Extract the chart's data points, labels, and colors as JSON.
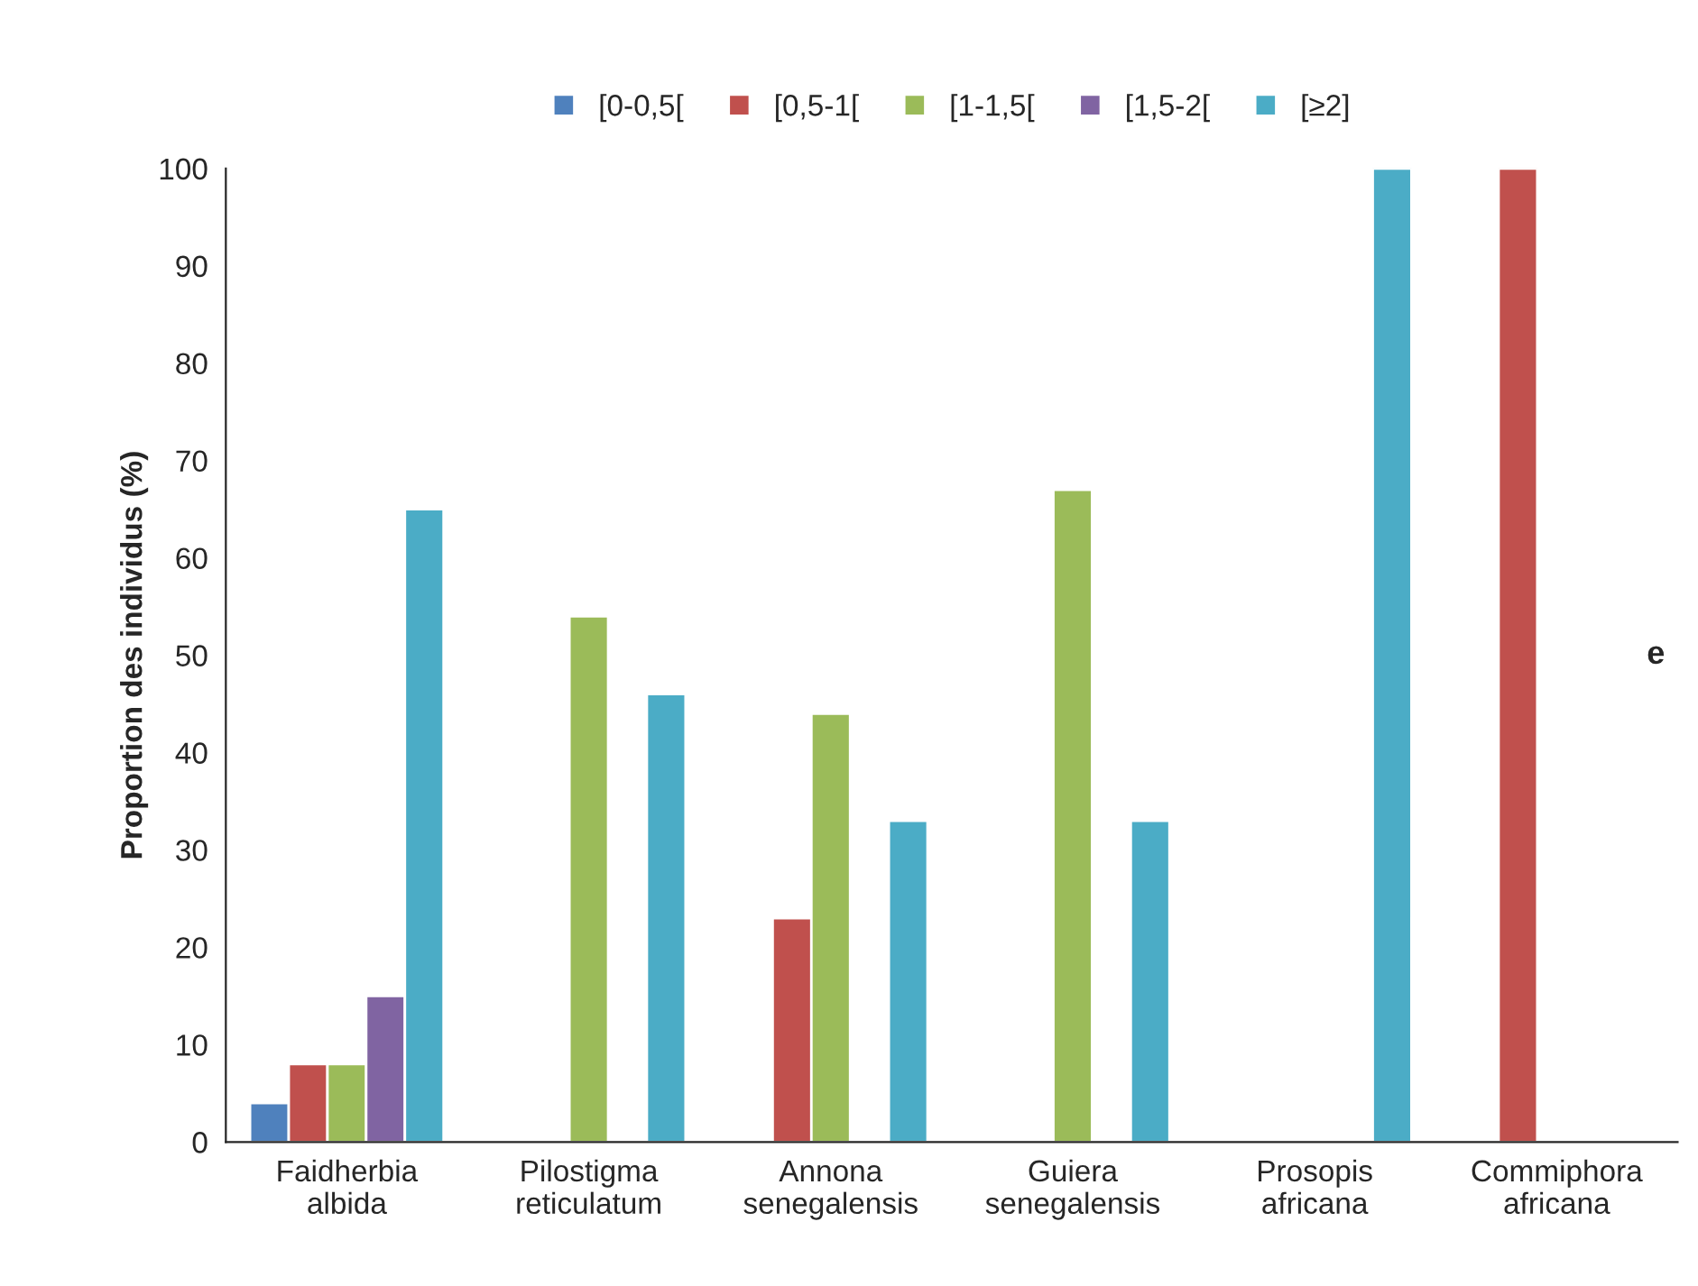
{
  "chart_data": {
    "type": "bar",
    "ylabel": "Proportion des individus (%)",
    "categories": [
      "Faidherbia\nalbida",
      "Pilostigma\nreticulatum",
      "Annona\nsenegalensis",
      "Guiera\nsenegalensis",
      "Prosopis\nafricana",
      "Commiphora\nafricana"
    ],
    "series": [
      {
        "name": "[0-0,5[",
        "color": "#4f81bd",
        "values": [
          4,
          null,
          null,
          null,
          null,
          null
        ]
      },
      {
        "name": "[0,5-1[",
        "color": "#c0504d",
        "values": [
          8,
          null,
          23,
          null,
          null,
          100
        ]
      },
      {
        "name": "[1-1,5[",
        "color": "#9bbb59",
        "values": [
          8,
          54,
          44,
          67,
          null,
          null
        ]
      },
      {
        "name": "[1,5-2[",
        "color": "#8064a2",
        "values": [
          15,
          null,
          null,
          null,
          null,
          null
        ]
      },
      {
        "name": "[≥2]",
        "color": "#4bacc6",
        "values": [
          65,
          46,
          33,
          33,
          100,
          null
        ]
      }
    ],
    "ylim": [
      0,
      100
    ],
    "yticks": [
      0,
      10,
      20,
      30,
      40,
      50,
      60,
      70,
      80,
      90,
      100
    ],
    "grid": false,
    "legend": "top",
    "annotations": [
      "e"
    ]
  }
}
